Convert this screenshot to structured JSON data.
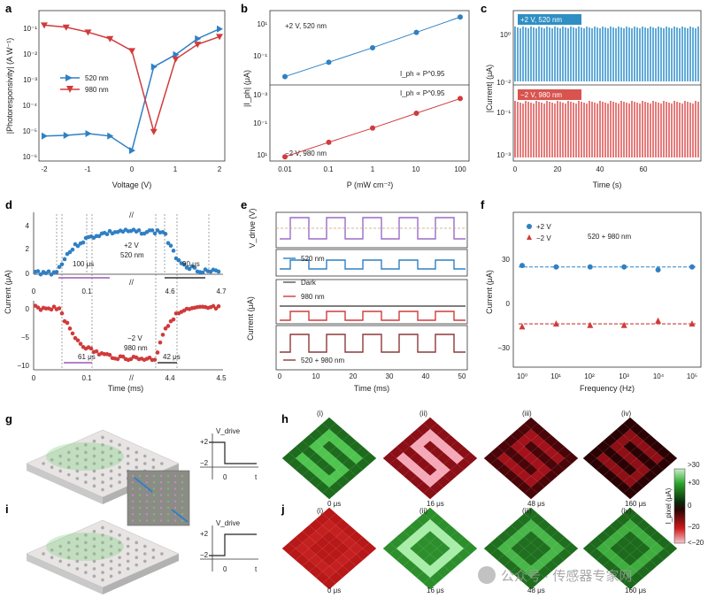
{
  "panel_letters": [
    "a",
    "b",
    "c",
    "d",
    "e",
    "f",
    "g",
    "h",
    "i",
    "j"
  ],
  "watermark": "公众号 · 传感器专家网",
  "panel_a": {
    "ylabel": "|Photoresponsivity| (A W⁻¹)",
    "xlabel": "Voltage (V)",
    "xticks": [
      "-2",
      "-1",
      "0",
      "1",
      "2"
    ],
    "yticks": [
      "10⁻¹",
      "10⁻²",
      "10⁻³",
      "10⁻⁴",
      "10⁻⁵",
      "10⁻⁶"
    ],
    "legend": [
      "520 nm",
      "980 nm"
    ]
  },
  "panel_b": {
    "ylabel": "|I_ph| (μA)",
    "xlabel": "P (mW cm⁻²)",
    "xticks": [
      "0.01",
      "0.1",
      "1",
      "10",
      "100"
    ],
    "yticks_top": [
      "10¹",
      "10⁻¹"
    ],
    "yticks_bottom": [
      "10⁻³",
      "10⁻¹",
      "10¹"
    ],
    "ann_top": "+2 V, 520 nm",
    "ann_bottom": "−2 V, 980 nm",
    "fit_top": "I_ph ∝ P^0.95",
    "fit_bottom": "I_ph ∝ P^0.95"
  },
  "panel_c": {
    "ylabel": "|Current| (μA)",
    "xlabel": "Time (s)",
    "xticks": [
      "0",
      "20",
      "40",
      "60"
    ],
    "ann_top": "+2 V, 520 nm",
    "ann_bottom": "−2 V, 980 nm",
    "yticks_top": [
      "10⁰",
      "10⁻²"
    ],
    "yticks_bottom": [
      "10⁻¹",
      "10⁻³"
    ]
  },
  "panel_d": {
    "ylabel": "Current (μA)",
    "xlabel": "Time (ms)",
    "top_yticks": [
      "4",
      "2",
      "0"
    ],
    "top_xticks": [
      "0",
      "0.1",
      "4.6",
      "4.7"
    ],
    "top_ann": "+2 V\n520 nm",
    "top_rise": "100 μs",
    "top_fall": "90 μs",
    "bot_yticks": [
      "0",
      "−5",
      "−10"
    ],
    "bot_xticks": [
      "0",
      "0.1",
      "4.4",
      "4.5"
    ],
    "bot_ann": "−2 V\n980 nm",
    "bot_rise": "61 μs",
    "bot_fall": "42 μs"
  },
  "panel_e": {
    "ylabel_top": "V_drive (V)",
    "ylabel": "Current (μA)",
    "xlabel": "Time (ms)",
    "xticks": [
      "0",
      "10",
      "20",
      "30",
      "40",
      "50"
    ],
    "legend": [
      "520 nm",
      "Dark",
      "980 nm",
      "520 + 980 nm"
    ]
  },
  "panel_f": {
    "ylabel": "Current (μA)",
    "xlabel": "Frequency (Hz)",
    "yticks": [
      "30",
      "0",
      "−30"
    ],
    "xticks": [
      "10⁰",
      "10¹",
      "10²",
      "10³",
      "10⁴",
      "10⁵"
    ],
    "legend": [
      "+2 V",
      "−2 V"
    ],
    "ann": "520 + 980 nm"
  },
  "panel_g": {
    "vlabel": "V_drive",
    "ticks": [
      "+2",
      "−2",
      "0",
      "t"
    ]
  },
  "panel_i": {
    "vlabel": "V_drive",
    "ticks": [
      "+2",
      "−2",
      "0",
      "t"
    ]
  },
  "panel_h": {
    "labels": [
      "(i)",
      "(ii)",
      "(iii)",
      "(iv)"
    ],
    "times": [
      "0 μs",
      "16 μs",
      "48 μs",
      "160 μs"
    ]
  },
  "panel_j": {
    "labels": [
      "(i)",
      "(ii)",
      "(iii)",
      "(iv)"
    ],
    "times": [
      "0 μs",
      "16 μs",
      "48 μs",
      "160 μs"
    ]
  },
  "colorbar": {
    "ticks": [
      ">30",
      "+30",
      "0",
      "−20",
      "<−20"
    ],
    "label": "I_pixel (μA)"
  },
  "chart_data": [
    {
      "type": "line",
      "id": "a",
      "title": "",
      "xlabel": "Voltage (V)",
      "ylabel": "|Photoresponsivity| (A W⁻¹)",
      "yscale": "log",
      "ylim": [
        1e-06,
        0.2
      ],
      "xlim": [
        -2.1,
        2.1
      ],
      "series": [
        {
          "name": "520 nm",
          "x": [
            -2,
            -1.5,
            -1,
            -0.5,
            0,
            0.5,
            1,
            1.5,
            2
          ],
          "values": [
            8e-06,
            8.5e-06,
            1e-05,
            8e-06,
            2.2e-06,
            0.004,
            0.012,
            0.05,
            0.12
          ]
        },
        {
          "name": "980 nm",
          "x": [
            -2,
            -1.5,
            -1,
            -0.5,
            0,
            0.5,
            1,
            1.5,
            2
          ],
          "values": [
            0.17,
            0.14,
            0.09,
            0.05,
            0.017,
            1.2e-05,
            0.008,
            0.03,
            0.06
          ]
        }
      ]
    },
    {
      "type": "scatter",
      "id": "b",
      "title": "",
      "xlabel": "P (mW cm⁻²)",
      "ylabel": "|I_ph| (μA)",
      "xscale": "log",
      "yscale": "log",
      "series": [
        {
          "name": "+2 V, 520 nm",
          "x": [
            0.01,
            0.1,
            1,
            10,
            100
          ],
          "values": [
            0.02,
            0.16,
            1.3,
            12,
            110
          ]
        },
        {
          "name": "−2 V, 980 nm",
          "x": [
            0.01,
            0.1,
            1,
            10,
            100
          ],
          "values": [
            0.0011,
            0.009,
            0.07,
            0.6,
            5
          ]
        }
      ]
    },
    {
      "type": "scatter",
      "id": "f",
      "title": "",
      "xlabel": "Frequency (Hz)",
      "ylabel": "Current (μA)",
      "xscale": "log",
      "ylim": [
        -40,
        40
      ],
      "series": [
        {
          "name": "+2 V",
          "x": [
            1,
            10,
            100,
            1000,
            10000,
            100000
          ],
          "values": [
            26,
            25,
            25,
            25,
            23,
            25
          ]
        },
        {
          "name": "−2 V",
          "x": [
            1,
            10,
            100,
            1000,
            10000,
            100000
          ],
          "values": [
            -16,
            -14,
            -15,
            -15,
            -12,
            -14
          ]
        }
      ]
    }
  ]
}
